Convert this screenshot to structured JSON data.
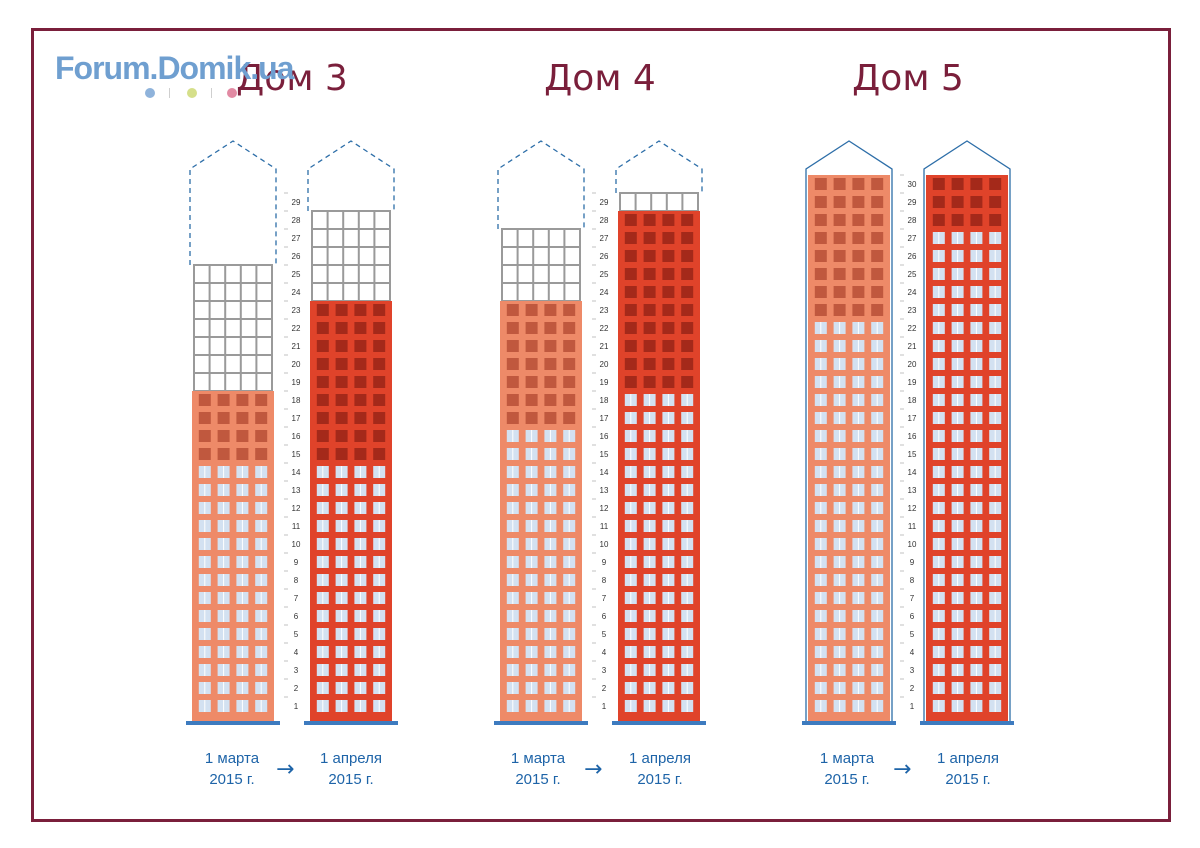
{
  "logo": {
    "text": "Forum.Domik.ua",
    "dot_colors": [
      "#8fb3db",
      "#d5df8a",
      "#e28aa3"
    ]
  },
  "colors": {
    "frame": "#7a1f3b",
    "title": "#7a1f3b",
    "date_text": "#1e64a8",
    "outline": "#2d6ea8",
    "light_brick": "#ee8a68",
    "light_brick_window": "#c0583e",
    "dark_brick": "#e0432a",
    "dark_brick_window": "#a4291a",
    "glass_window": "#d3e1f1",
    "frame_grid": "#9a9a9a",
    "base": "#3d7bbf"
  },
  "houses": [
    {
      "title": "Дом 3",
      "total_floors": 30,
      "max_floor_label": 29,
      "roof": "dashed",
      "before": {
        "date": [
          "1 марта",
          "2015 г."
        ],
        "brick_to_floor": 18,
        "windows_to_floor": 14,
        "frame_to_floor": 25
      },
      "after": {
        "date": [
          "1 апреля",
          "2015 г."
        ],
        "brick_to_floor": 23,
        "windows_to_floor": 14,
        "frame_to_floor": 28
      }
    },
    {
      "title": "Дом 4",
      "total_floors": 30,
      "max_floor_label": 29,
      "roof": "dashed",
      "before": {
        "date": [
          "1 марта",
          "2015 г."
        ],
        "brick_to_floor": 23,
        "windows_to_floor": 16,
        "frame_to_floor": 27
      },
      "after": {
        "date": [
          "1 апреля",
          "2015 г."
        ],
        "brick_to_floor": 28,
        "windows_to_floor": 18,
        "frame_to_floor": 29
      }
    },
    {
      "title": "Дом 5",
      "total_floors": 30,
      "max_floor_label": 30,
      "roof": "solid",
      "before": {
        "date": [
          "1 марта",
          "2015 г."
        ],
        "brick_to_floor": 30,
        "windows_to_floor": 22,
        "frame_to_floor": 30
      },
      "after": {
        "date": [
          "1 апреля",
          "2015 г."
        ],
        "brick_to_floor": 30,
        "windows_to_floor": 27,
        "frame_to_floor": 30
      }
    }
  ],
  "arrow": "→"
}
